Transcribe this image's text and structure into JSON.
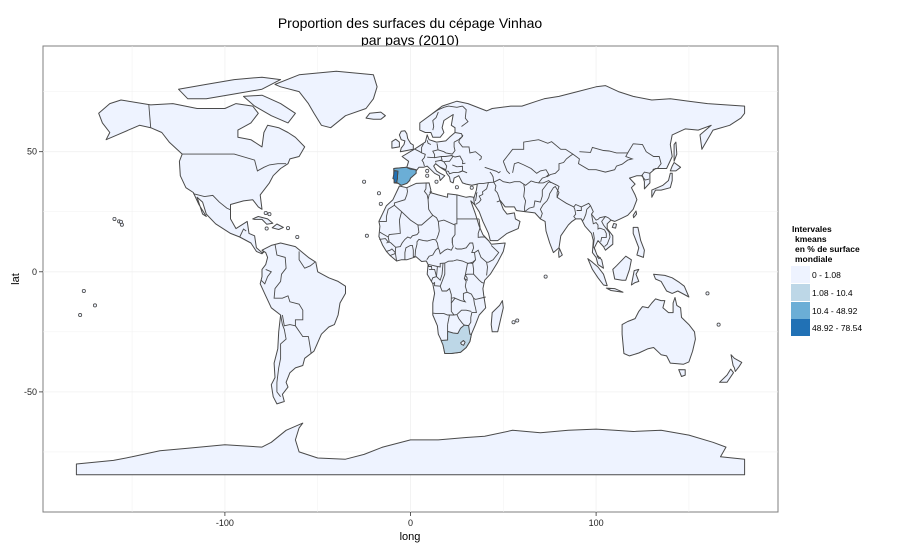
{
  "chart_data": {
    "type": "choropleth",
    "title_line1": "Proportion des surfaces du cépage Vinhao",
    "title_line2": "par pays (2010)",
    "xlabel": "long",
    "ylabel": "lat",
    "x_ticks": [
      -100,
      0,
      100
    ],
    "y_ticks": [
      50,
      0,
      -50
    ],
    "xlim": [
      -198,
      198
    ],
    "ylim": [
      -100,
      94
    ],
    "grid": true,
    "legend": {
      "title_lines": [
        "Intervales",
        "kmeans",
        "en % de surface",
        "mondiale"
      ],
      "placement": "right",
      "classes": [
        {
          "label": "0 - 1.08",
          "color": "#eef3ff"
        },
        {
          "label": "1.08 - 10.4",
          "color": "#bdd7e7"
        },
        {
          "label": "10.4 - 48.92",
          "color": "#6baed6"
        },
        {
          "label": "48.92 - 78.54",
          "color": "#2171b5"
        }
      ]
    },
    "countries_highlighted": [
      {
        "name": "Portugal",
        "class": "48.92 - 78.54"
      },
      {
        "name": "Spain",
        "class": "10.4 - 48.92"
      },
      {
        "name": "South Africa",
        "class": "1.08 - 10.4"
      }
    ],
    "default_class": "0 - 1.08"
  }
}
